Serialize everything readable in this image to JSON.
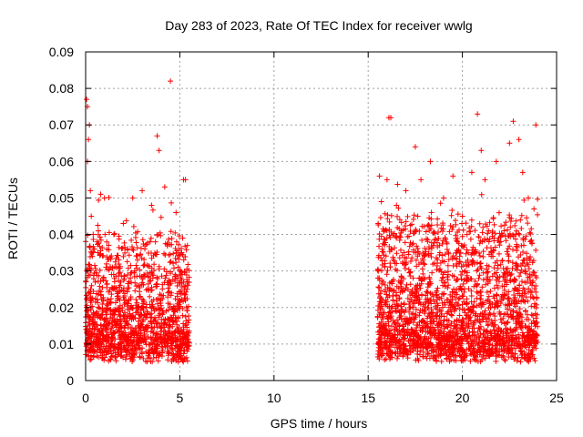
{
  "chart_data": {
    "type": "scatter",
    "title": "Day 283 of 2023, Rate Of TEC Index for receiver wwlg",
    "xlabel": "GPS time / hours",
    "ylabel": "ROTI / TECUs",
    "xlim": [
      0,
      25
    ],
    "ylim": [
      0,
      0.09
    ],
    "x_ticks": [
      "0",
      "5",
      "10",
      "15",
      "20",
      "25"
    ],
    "y_ticks": [
      "0",
      "0.01",
      "0.02",
      "0.03",
      "0.04",
      "0.05",
      "0.06",
      "0.07",
      "0.08",
      "0.09"
    ],
    "x_tick_values": [
      0,
      5,
      10,
      15,
      20,
      25
    ],
    "y_tick_values": [
      0,
      0.01,
      0.02,
      0.03,
      0.04,
      0.05,
      0.06,
      0.07,
      0.08,
      0.09
    ],
    "grid": true,
    "marker": "+",
    "color": "#ff0000",
    "series": [
      {
        "segments": [
          {
            "x_range": [
              0.0,
              5.5
            ],
            "typical_range": [
              0.005,
              0.035
            ]
          },
          {
            "x_range": [
              15.5,
              24.0
            ],
            "typical_range": [
              0.005,
              0.04
            ]
          }
        ],
        "points": [
          [
            0.05,
            0.077
          ],
          [
            0.1,
            0.075
          ],
          [
            0.15,
            0.066
          ],
          [
            0.2,
            0.07
          ],
          [
            0.1,
            0.06
          ],
          [
            0.25,
            0.052
          ],
          [
            0.3,
            0.045
          ],
          [
            0.4,
            0.04
          ],
          [
            0.8,
            0.051
          ],
          [
            1.0,
            0.05
          ],
          [
            1.5,
            0.04
          ],
          [
            2.0,
            0.043
          ],
          [
            2.5,
            0.05
          ],
          [
            3.0,
            0.052
          ],
          [
            3.5,
            0.048
          ],
          [
            3.8,
            0.067
          ],
          [
            3.9,
            0.063
          ],
          [
            4.2,
            0.053
          ],
          [
            4.5,
            0.082
          ],
          [
            4.8,
            0.046
          ],
          [
            5.2,
            0.055
          ],
          [
            5.3,
            0.055
          ],
          [
            5.4,
            0.037
          ],
          [
            15.6,
            0.056
          ],
          [
            15.7,
            0.049
          ],
          [
            16.0,
            0.055
          ],
          [
            16.1,
            0.072
          ],
          [
            16.2,
            0.072
          ],
          [
            16.5,
            0.048
          ],
          [
            17.0,
            0.052
          ],
          [
            17.5,
            0.064
          ],
          [
            17.8,
            0.055
          ],
          [
            18.3,
            0.06
          ],
          [
            19.0,
            0.05
          ],
          [
            19.5,
            0.056
          ],
          [
            20.0,
            0.045
          ],
          [
            20.5,
            0.057
          ],
          [
            20.8,
            0.073
          ],
          [
            21.0,
            0.063
          ],
          [
            21.2,
            0.055
          ],
          [
            21.8,
            0.06
          ],
          [
            22.5,
            0.065
          ],
          [
            22.7,
            0.071
          ],
          [
            23.0,
            0.066
          ],
          [
            23.2,
            0.057
          ],
          [
            23.5,
            0.05
          ],
          [
            23.8,
            0.047
          ],
          [
            23.9,
            0.07
          ]
        ]
      }
    ]
  }
}
